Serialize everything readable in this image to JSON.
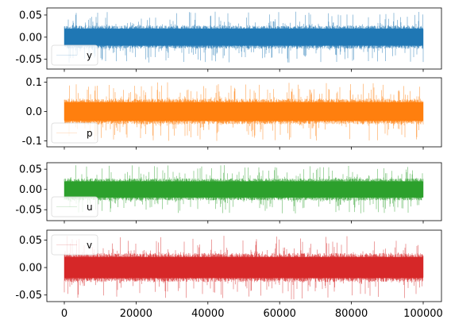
{
  "chart_data": [
    {
      "type": "line",
      "series": [
        {
          "name": "y",
          "color": "#1f77b4"
        }
      ],
      "x_range": [
        0,
        100000
      ],
      "ylim": [
        -0.072,
        0.066
      ],
      "yticks": [
        {
          "value": 0.05,
          "label": "0.05"
        },
        {
          "value": 0.0,
          "label": "0.00"
        },
        {
          "value": -0.05,
          "label": "-0.05"
        }
      ],
      "xticks": [
        0,
        20000,
        40000,
        60000,
        80000,
        100000
      ],
      "show_xtick_labels": false,
      "band": {
        "core": 0.024,
        "spike": 0.058
      },
      "legend": "lower-left"
    },
    {
      "type": "line",
      "series": [
        {
          "name": "p",
          "color": "#ff7f0e"
        }
      ],
      "x_range": [
        0,
        100000
      ],
      "ylim": [
        -0.12,
        0.115
      ],
      "yticks": [
        {
          "value": 0.1,
          "label": "0.1"
        },
        {
          "value": 0.0,
          "label": "0.0"
        },
        {
          "value": -0.1,
          "label": "-0.1"
        }
      ],
      "xticks": [
        0,
        20000,
        40000,
        60000,
        80000,
        100000
      ],
      "show_xtick_labels": false,
      "band": {
        "core": 0.04,
        "spike": 0.1
      },
      "legend": "lower-left"
    },
    {
      "type": "line",
      "series": [
        {
          "name": "u",
          "color": "#2ca02c"
        }
      ],
      "x_range": [
        0,
        100000
      ],
      "ylim": [
        -0.077,
        0.066
      ],
      "yticks": [
        {
          "value": 0.05,
          "label": "0.05"
        },
        {
          "value": 0.0,
          "label": "0.00"
        },
        {
          "value": -0.05,
          "label": "-0.05"
        }
      ],
      "xticks": [
        0,
        20000,
        40000,
        60000,
        80000,
        100000
      ],
      "show_xtick_labels": false,
      "band": {
        "core": 0.025,
        "spike": 0.06
      },
      "legend": "lower-left"
    },
    {
      "type": "line",
      "series": [
        {
          "name": "v",
          "color": "#d62728"
        }
      ],
      "x_range": [
        0,
        100000
      ],
      "ylim": [
        -0.062,
        0.068
      ],
      "yticks": [
        {
          "value": 0.05,
          "label": "0.05"
        },
        {
          "value": 0.0,
          "label": "0.00"
        },
        {
          "value": -0.05,
          "label": "-0.05"
        }
      ],
      "xticks": [
        0,
        20000,
        40000,
        60000,
        80000,
        100000
      ],
      "xtick_labels": [
        "0",
        "20000",
        "40000",
        "60000",
        "80000",
        "100000"
      ],
      "show_xtick_labels": true,
      "band": {
        "core": 0.024,
        "spike": 0.058
      },
      "legend": "upper-left"
    }
  ]
}
